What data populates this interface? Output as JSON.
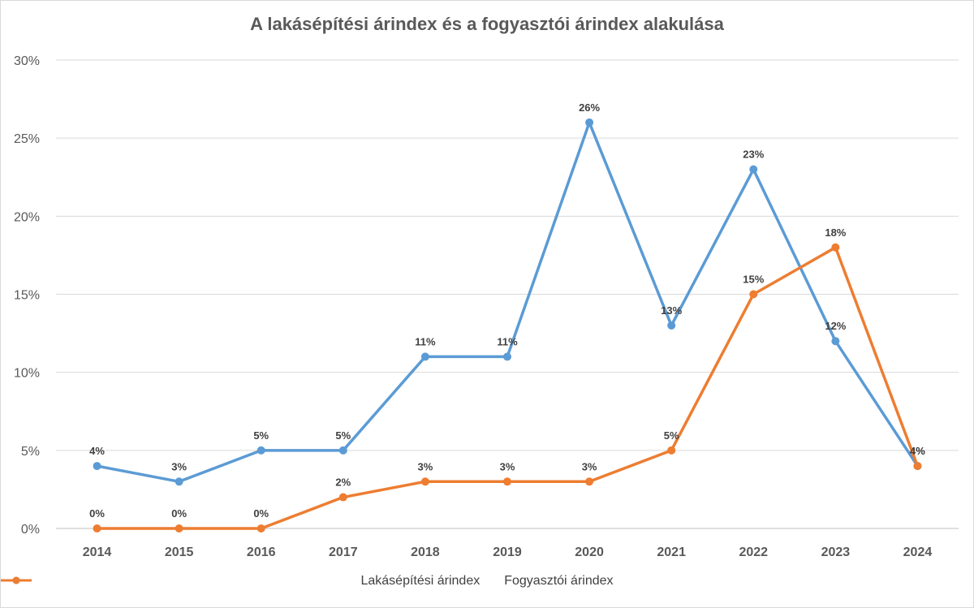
{
  "chart_data": {
    "type": "line",
    "title": "A lakásépítési árindex és a fogyasztói árindex alakulása",
    "xlabel": "",
    "ylabel": "",
    "categories": [
      "2014",
      "2015",
      "2016",
      "2017",
      "2018",
      "2019",
      "2020",
      "2021",
      "2022",
      "2023",
      "2024"
    ],
    "ylim": [
      0,
      30
    ],
    "yticks": [
      "0%",
      "5%",
      "10%",
      "15%",
      "20%",
      "25%",
      "30%"
    ],
    "grid": true,
    "legend_position": "bottom",
    "series": [
      {
        "name": "Lakásépítési árindex",
        "color": "#5B9BD5",
        "values": [
          4,
          3,
          5,
          5,
          11,
          11,
          26,
          13,
          23,
          12,
          4
        ],
        "labels": [
          "4%",
          "3%",
          "5%",
          "5%",
          "11%",
          "11%",
          "26%",
          "13%",
          "23%",
          "12%",
          "4%"
        ]
      },
      {
        "name": "Fogyasztói árindex",
        "color": "#ED7D31",
        "values": [
          0,
          0,
          0,
          2,
          3,
          3,
          3,
          5,
          15,
          18,
          4
        ],
        "labels": [
          "0%",
          "0%",
          "0%",
          "2%",
          "3%",
          "3%",
          "3%",
          "5%",
          "15%",
          "18%",
          "4%"
        ]
      }
    ]
  }
}
